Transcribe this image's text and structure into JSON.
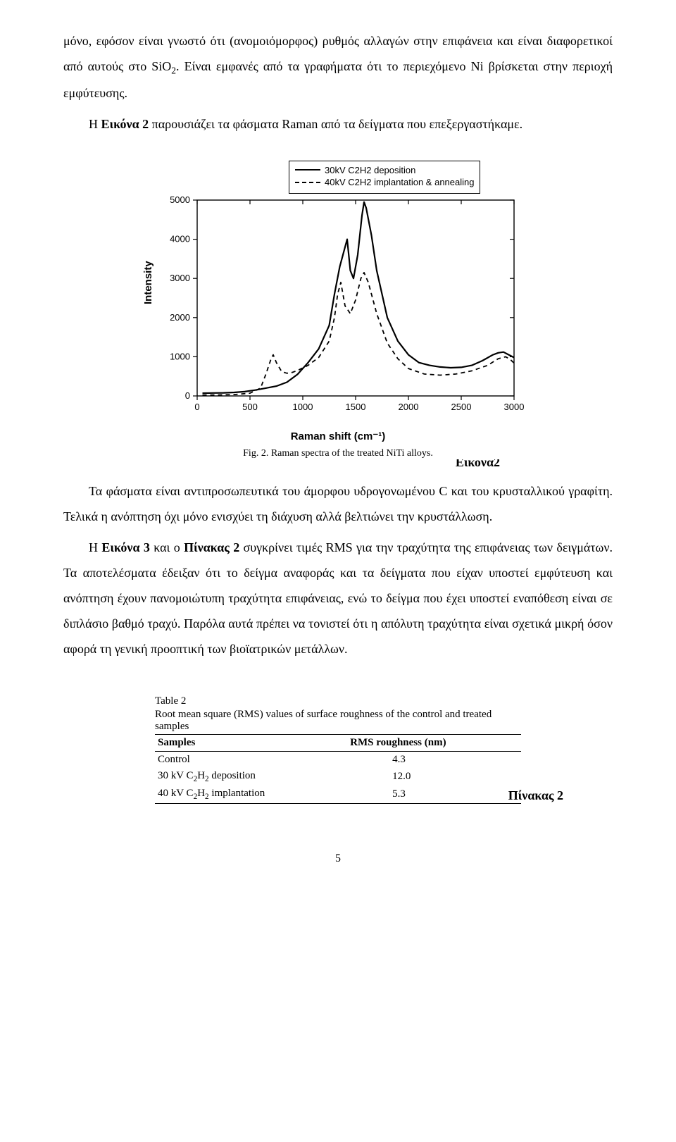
{
  "paragraphs": {
    "p1_a": "μόνο, εφόσον είναι γνωστό ότι (ανομοιόμορφος) ρυθμός αλλαγών στην επιφάνεια και είναι διαφορετικοί από αυτούς στο SiO",
    "p1_sub": "2",
    "p1_b": ". Είναι εμφανές από τα γραφήματα ότι το περιεχόμενο Ni βρίσκεται στην  περιοχή εμφύτευσης.",
    "p2_a": "Η ",
    "p2_b": "Εικόνα 2",
    "p2_c": " παρουσιάζει τα φάσματα Raman από τα δείγματα που επεξεργαστήκαμε.",
    "p3": "Τα φάσματα είναι αντιπροσωπευτικά του άμορφου υδρογονωμένου C και του κρυσταλλικού γραφίτη. Τελικά η ανόπτηση όχι μόνο ενισχύει τη διάχυση αλλά βελτιώνει την κρυστάλλωση.",
    "p4_a": "Η ",
    "p4_b": "Εικόνα 3",
    "p4_c": " και ο ",
    "p4_d": "Πίνακας 2",
    "p4_e": " συγκρίνει τιμές RMS για την τραχύτητα της επιφάνειας των δειγμάτων. Τα αποτελέσματα έδειξαν ότι το δείγμα αναφοράς και τα δείγματα που είχαν υποστεί εμφύτευση και ανόπτηση έχουν πανομοιώτυπη τραχύτητα επιφάνειας, ενώ το δείγμα που έχει υποστεί εναπόθεση είναι σε διπλάσιο βαθμό τραχύ. Παρόλα αυτά πρέπει να τονιστεί ότι η απόλυτη τραχύτητα είναι σχετικά μικρή όσον αφορά τη γενική προοπτική των βιοϊατρικών μετάλλων."
  },
  "figure": {
    "legend": {
      "s1": "30kV C2H2 deposition",
      "s2": "40kV C2H2 implantation & annealing"
    },
    "ylabel": "Intensity",
    "xlabel": "Raman shift (cm⁻¹)",
    "caption": "Fig. 2.  Raman spectra of the treated NiTi alloys.",
    "side_label": "Εικόνα2",
    "xlim": [
      0,
      3000
    ],
    "ylim": [
      0,
      5000
    ],
    "yticks": [
      0,
      1000,
      2000,
      3000,
      4000,
      5000
    ],
    "xticks": [
      0,
      500,
      1000,
      1500,
      2000,
      2500,
      3000
    ],
    "bg": "#ffffff",
    "axis_color": "#000000",
    "series": [
      {
        "name": "solid",
        "dash": "none",
        "color": "#000000",
        "width": 2.2,
        "points": [
          [
            50,
            70
          ],
          [
            150,
            75
          ],
          [
            250,
            80
          ],
          [
            350,
            90
          ],
          [
            450,
            110
          ],
          [
            550,
            150
          ],
          [
            650,
            200
          ],
          [
            750,
            250
          ],
          [
            850,
            350
          ],
          [
            950,
            550
          ],
          [
            1050,
            850
          ],
          [
            1150,
            1200
          ],
          [
            1250,
            1800
          ],
          [
            1300,
            2600
          ],
          [
            1350,
            3300
          ],
          [
            1380,
            3600
          ],
          [
            1420,
            4000
          ],
          [
            1450,
            3200
          ],
          [
            1480,
            3000
          ],
          [
            1520,
            3600
          ],
          [
            1560,
            4600
          ],
          [
            1580,
            4950
          ],
          [
            1600,
            4800
          ],
          [
            1650,
            4100
          ],
          [
            1700,
            3200
          ],
          [
            1800,
            2000
          ],
          [
            1900,
            1400
          ],
          [
            2000,
            1050
          ],
          [
            2100,
            850
          ],
          [
            2200,
            780
          ],
          [
            2300,
            740
          ],
          [
            2400,
            720
          ],
          [
            2500,
            730
          ],
          [
            2600,
            780
          ],
          [
            2700,
            900
          ],
          [
            2800,
            1050
          ],
          [
            2850,
            1100
          ],
          [
            2900,
            1120
          ],
          [
            2950,
            1050
          ],
          [
            3000,
            980
          ]
        ]
      },
      {
        "name": "dashed",
        "dash": "6,5",
        "color": "#000000",
        "width": 1.8,
        "points": [
          [
            50,
            20
          ],
          [
            200,
            25
          ],
          [
            350,
            35
          ],
          [
            500,
            70
          ],
          [
            600,
            200
          ],
          [
            650,
            550
          ],
          [
            700,
            950
          ],
          [
            720,
            1050
          ],
          [
            750,
            850
          ],
          [
            800,
            620
          ],
          [
            850,
            580
          ],
          [
            900,
            600
          ],
          [
            950,
            650
          ],
          [
            1050,
            780
          ],
          [
            1150,
            980
          ],
          [
            1250,
            1400
          ],
          [
            1300,
            2000
          ],
          [
            1330,
            2600
          ],
          [
            1360,
            2900
          ],
          [
            1400,
            2300
          ],
          [
            1450,
            2100
          ],
          [
            1500,
            2450
          ],
          [
            1550,
            3000
          ],
          [
            1580,
            3150
          ],
          [
            1620,
            2900
          ],
          [
            1700,
            2100
          ],
          [
            1800,
            1350
          ],
          [
            1900,
            950
          ],
          [
            2000,
            700
          ],
          [
            2150,
            560
          ],
          [
            2300,
            530
          ],
          [
            2450,
            560
          ],
          [
            2600,
            640
          ],
          [
            2750,
            780
          ],
          [
            2850,
            950
          ],
          [
            2920,
            1000
          ],
          [
            2960,
            940
          ],
          [
            3000,
            840
          ]
        ]
      }
    ]
  },
  "table": {
    "caption_label": "Table 2",
    "caption_text": "Root mean square (RMS) values of surface roughness of the control and treated samples",
    "header": [
      "Samples",
      "RMS roughness (nm)"
    ],
    "rows": [
      {
        "label_a": "Control",
        "label_sub": "",
        "label_b": "",
        "val": "4.3"
      },
      {
        "label_a": "30 kV C",
        "label_sub": "2",
        "label_mid": "H",
        "label_sub2": "2",
        "label_b": " deposition",
        "val": "12.0"
      },
      {
        "label_a": "40 kV C",
        "label_sub": "2",
        "label_mid": "H",
        "label_sub2": "2",
        "label_b": " implantation",
        "val": "5.3"
      }
    ],
    "side_label": "Πίνακας 2"
  },
  "page_number": "5"
}
